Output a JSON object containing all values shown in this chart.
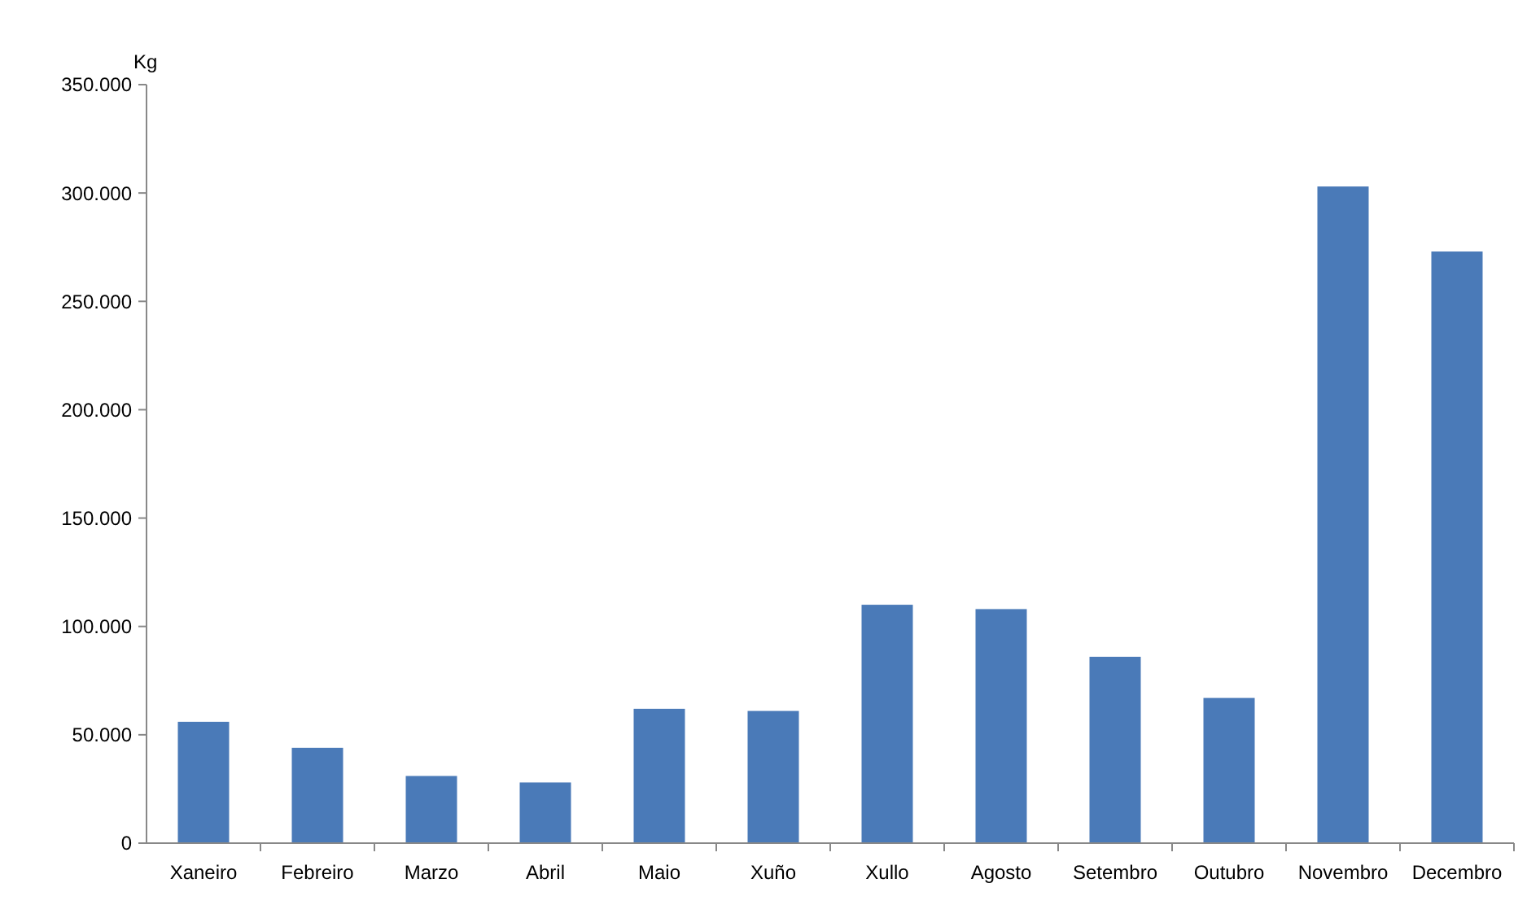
{
  "chart_data": {
    "type": "bar",
    "ylabel": "Kg",
    "categories": [
      "Xaneiro",
      "Febreiro",
      "Marzo",
      "Abril",
      "Maio",
      "Xuño",
      "Xullo",
      "Agosto",
      "Setembro",
      "Outubro",
      "Novembro",
      "Decembro"
    ],
    "values": [
      56000,
      44000,
      31000,
      28000,
      62000,
      61000,
      110000,
      108000,
      86000,
      67000,
      303000,
      273000
    ],
    "color": "#4a7ab8",
    "ylim": [
      0,
      350000
    ],
    "yticks": [
      {
        "value": 0,
        "label": "0"
      },
      {
        "value": 50000,
        "label": "50.000"
      },
      {
        "value": 100000,
        "label": "100.000"
      },
      {
        "value": 150000,
        "label": "150.000"
      },
      {
        "value": 200000,
        "label": "200.000"
      },
      {
        "value": 250000,
        "label": "250.000"
      },
      {
        "value": 300000,
        "label": "300.000"
      },
      {
        "value": 350000,
        "label": "350.000"
      }
    ],
    "grid": false
  }
}
